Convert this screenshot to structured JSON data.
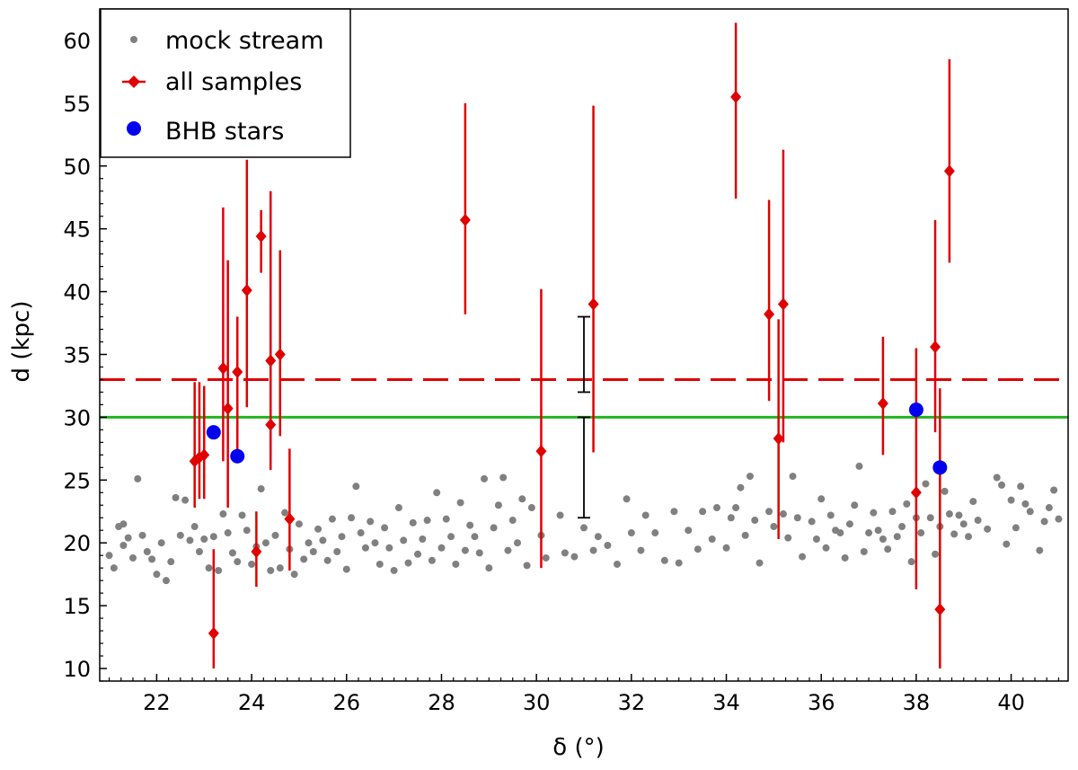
{
  "chart_data": {
    "type": "scatter",
    "xlabel": "δ (°)",
    "ylabel": "d (kpc)",
    "xlim": [
      20.8,
      41.2
    ],
    "ylim": [
      9,
      62.5
    ],
    "x_ticks": [
      22,
      24,
      26,
      28,
      30,
      32,
      34,
      36,
      38,
      40
    ],
    "y_ticks": [
      10,
      15,
      20,
      25,
      30,
      35,
      40,
      45,
      50,
      55,
      60
    ],
    "legend": {
      "placement": "top-left",
      "entries": [
        "mock stream",
        "all samples",
        "BHB stars"
      ]
    },
    "colors": {
      "mock": "#808080",
      "samples": "#e00000",
      "bhb": "#0000ee",
      "hline_dashed": "#e00000",
      "hline_solid": "#22b422",
      "ref_bars": "#000000"
    },
    "hlines": [
      {
        "style": "dashed",
        "color": "#e00000",
        "y": 33
      },
      {
        "style": "solid",
        "color": "#22b422",
        "y": 30
      }
    ],
    "reference_errorbars": [
      {
        "x": 31.0,
        "ylow": 32.0,
        "yhigh": 38.0
      },
      {
        "x": 31.0,
        "ylow": 22.0,
        "yhigh": 30.0
      }
    ],
    "series": [
      {
        "name": "mock stream",
        "marker": "dot",
        "points": [
          [
            21.0,
            19.0
          ],
          [
            21.1,
            18.0
          ],
          [
            21.2,
            21.3
          ],
          [
            21.3,
            19.8
          ],
          [
            21.3,
            21.5
          ],
          [
            21.4,
            20.4
          ],
          [
            21.5,
            18.8
          ],
          [
            21.6,
            25.1
          ],
          [
            21.7,
            20.6
          ],
          [
            21.8,
            19.3
          ],
          [
            21.9,
            18.7
          ],
          [
            22.0,
            17.5
          ],
          [
            22.1,
            20.0
          ],
          [
            22.2,
            17.0
          ],
          [
            22.3,
            18.5
          ],
          [
            22.4,
            23.6
          ],
          [
            22.5,
            20.6
          ],
          [
            22.6,
            23.4
          ],
          [
            22.7,
            20.2
          ],
          [
            22.8,
            21.3
          ],
          [
            22.9,
            19.3
          ],
          [
            23.0,
            20.3
          ],
          [
            23.1,
            18.0
          ],
          [
            23.2,
            20.5
          ],
          [
            23.3,
            17.8
          ],
          [
            23.4,
            22.3
          ],
          [
            23.5,
            20.8
          ],
          [
            23.6,
            19.2
          ],
          [
            23.7,
            18.5
          ],
          [
            23.8,
            22.2
          ],
          [
            23.9,
            21.0
          ],
          [
            24.0,
            18.3
          ],
          [
            24.1,
            19.7
          ],
          [
            24.2,
            24.3
          ],
          [
            24.3,
            20.0
          ],
          [
            24.4,
            17.8
          ],
          [
            24.5,
            20.6
          ],
          [
            24.6,
            18.0
          ],
          [
            24.7,
            22.4
          ],
          [
            24.8,
            19.5
          ],
          [
            24.9,
            17.5
          ],
          [
            25.0,
            21.5
          ],
          [
            25.1,
            18.7
          ],
          [
            25.2,
            20.0
          ],
          [
            25.3,
            19.3
          ],
          [
            25.4,
            21.1
          ],
          [
            25.5,
            20.2
          ],
          [
            25.6,
            18.6
          ],
          [
            25.7,
            21.9
          ],
          [
            25.8,
            19.3
          ],
          [
            25.9,
            20.5
          ],
          [
            26.0,
            17.9
          ],
          [
            26.1,
            22.0
          ],
          [
            26.2,
            24.5
          ],
          [
            26.3,
            20.8
          ],
          [
            26.4,
            19.6
          ],
          [
            26.5,
            21.7
          ],
          [
            26.6,
            20.0
          ],
          [
            26.7,
            18.3
          ],
          [
            26.8,
            21.2
          ],
          [
            26.9,
            19.6
          ],
          [
            27.0,
            17.8
          ],
          [
            27.1,
            22.8
          ],
          [
            27.2,
            20.2
          ],
          [
            27.3,
            18.4
          ],
          [
            27.4,
            21.6
          ],
          [
            27.5,
            19.1
          ],
          [
            27.6,
            20.3
          ],
          [
            27.7,
            21.8
          ],
          [
            27.8,
            18.6
          ],
          [
            27.9,
            24.0
          ],
          [
            28.0,
            19.6
          ],
          [
            28.1,
            21.9
          ],
          [
            28.2,
            20.5
          ],
          [
            28.3,
            18.3
          ],
          [
            28.4,
            23.2
          ],
          [
            28.5,
            19.4
          ],
          [
            28.6,
            21.4
          ],
          [
            28.7,
            20.5
          ],
          [
            28.8,
            19.2
          ],
          [
            28.9,
            25.1
          ],
          [
            29.0,
            18.0
          ],
          [
            29.1,
            21.2
          ],
          [
            29.2,
            23.0
          ],
          [
            29.3,
            25.2
          ],
          [
            29.4,
            19.4
          ],
          [
            29.5,
            21.8
          ],
          [
            29.6,
            20.0
          ],
          [
            29.7,
            23.5
          ],
          [
            29.8,
            18.2
          ],
          [
            29.9,
            22.8
          ],
          [
            30.1,
            20.6
          ],
          [
            30.2,
            18.8
          ],
          [
            30.5,
            22.2
          ],
          [
            30.6,
            19.2
          ],
          [
            30.8,
            18.9
          ],
          [
            31.0,
            21.2
          ],
          [
            31.2,
            19.4
          ],
          [
            31.3,
            20.5
          ],
          [
            31.5,
            19.8
          ],
          [
            31.7,
            18.3
          ],
          [
            31.9,
            23.5
          ],
          [
            32.0,
            20.8
          ],
          [
            32.2,
            19.4
          ],
          [
            32.3,
            22.2
          ],
          [
            32.5,
            20.8
          ],
          [
            32.7,
            18.6
          ],
          [
            32.9,
            22.5
          ],
          [
            33.0,
            18.4
          ],
          [
            33.2,
            21.0
          ],
          [
            33.4,
            19.5
          ],
          [
            33.5,
            22.5
          ],
          [
            33.7,
            20.3
          ],
          [
            33.8,
            22.8
          ],
          [
            34.0,
            19.6
          ],
          [
            34.1,
            22.0
          ],
          [
            34.2,
            22.8
          ],
          [
            34.3,
            24.4
          ],
          [
            34.4,
            20.6
          ],
          [
            34.5,
            25.3
          ],
          [
            34.6,
            21.8
          ],
          [
            34.7,
            18.4
          ],
          [
            34.9,
            22.5
          ],
          [
            35.0,
            21.3
          ],
          [
            35.2,
            22.3
          ],
          [
            35.3,
            20.4
          ],
          [
            35.4,
            25.3
          ],
          [
            35.5,
            22.0
          ],
          [
            35.6,
            18.9
          ],
          [
            35.8,
            21.7
          ],
          [
            35.9,
            20.3
          ],
          [
            36.0,
            23.5
          ],
          [
            36.1,
            19.6
          ],
          [
            36.2,
            22.2
          ],
          [
            36.3,
            21.0
          ],
          [
            36.4,
            20.8
          ],
          [
            36.5,
            18.8
          ],
          [
            36.6,
            21.5
          ],
          [
            36.7,
            23.0
          ],
          [
            36.8,
            26.1
          ],
          [
            36.9,
            19.3
          ],
          [
            37.0,
            20.8
          ],
          [
            37.1,
            22.4
          ],
          [
            37.2,
            21.0
          ],
          [
            37.3,
            20.3
          ],
          [
            37.4,
            19.5
          ],
          [
            37.5,
            22.5
          ],
          [
            37.6,
            20.5
          ],
          [
            37.7,
            21.3
          ],
          [
            37.8,
            23.1
          ],
          [
            37.9,
            18.5
          ],
          [
            38.0,
            22.0
          ],
          [
            38.1,
            20.8
          ],
          [
            38.2,
            24.7
          ],
          [
            38.3,
            22.0
          ],
          [
            38.4,
            19.1
          ],
          [
            38.5,
            21.3
          ],
          [
            38.6,
            24.1
          ],
          [
            38.7,
            22.3
          ],
          [
            38.8,
            20.7
          ],
          [
            38.9,
            22.2
          ],
          [
            39.0,
            21.5
          ],
          [
            39.1,
            20.5
          ],
          [
            39.2,
            23.3
          ],
          [
            39.3,
            21.8
          ],
          [
            39.5,
            21.1
          ],
          [
            39.7,
            25.2
          ],
          [
            39.8,
            24.6
          ],
          [
            39.9,
            19.9
          ],
          [
            40.0,
            23.4
          ],
          [
            40.1,
            21.2
          ],
          [
            40.2,
            24.5
          ],
          [
            40.3,
            23.1
          ],
          [
            40.4,
            22.5
          ],
          [
            40.6,
            19.4
          ],
          [
            40.7,
            21.7
          ],
          [
            40.8,
            22.8
          ],
          [
            40.9,
            24.2
          ],
          [
            41.0,
            21.9
          ]
        ]
      },
      {
        "name": "all samples",
        "marker": "diamond-errorbar",
        "points": [
          {
            "x": 22.8,
            "y": 26.5,
            "ylow": 22.8,
            "yhigh": 32.8
          },
          {
            "x": 22.9,
            "y": 26.8,
            "ylow": 23.5,
            "yhigh": 32.8
          },
          {
            "x": 23.0,
            "y": 27.0,
            "ylow": 23.5,
            "yhigh": 32.5
          },
          {
            "x": 23.2,
            "y": 12.8,
            "ylow": 10.0,
            "yhigh": 19.5
          },
          {
            "x": 23.4,
            "y": 33.9,
            "ylow": 26.5,
            "yhigh": 46.7
          },
          {
            "x": 23.5,
            "y": 30.7,
            "ylow": 22.8,
            "yhigh": 42.5
          },
          {
            "x": 23.7,
            "y": 33.6,
            "ylow": 27.0,
            "yhigh": 38.0
          },
          {
            "x": 23.9,
            "y": 40.1,
            "ylow": 30.8,
            "yhigh": 50.5
          },
          {
            "x": 24.1,
            "y": 19.3,
            "ylow": 16.5,
            "yhigh": 22.5
          },
          {
            "x": 24.2,
            "y": 44.4,
            "ylow": 41.5,
            "yhigh": 46.5
          },
          {
            "x": 24.4,
            "y": 34.5,
            "ylow": 27.0,
            "yhigh": 48.0
          },
          {
            "x": 24.4,
            "y": 29.4,
            "ylow": 25.8,
            "yhigh": 39.5
          },
          {
            "x": 24.6,
            "y": 35.0,
            "ylow": 28.5,
            "yhigh": 43.3
          },
          {
            "x": 24.8,
            "y": 21.9,
            "ylow": 17.8,
            "yhigh": 27.5
          },
          {
            "x": 28.5,
            "y": 45.7,
            "ylow": 38.2,
            "yhigh": 55.0
          },
          {
            "x": 30.1,
            "y": 27.3,
            "ylow": 18.0,
            "yhigh": 40.2
          },
          {
            "x": 31.2,
            "y": 39.0,
            "ylow": 27.2,
            "yhigh": 54.8
          },
          {
            "x": 34.2,
            "y": 55.5,
            "ylow": 47.4,
            "yhigh": 61.4
          },
          {
            "x": 34.9,
            "y": 38.2,
            "ylow": 31.3,
            "yhigh": 47.3
          },
          {
            "x": 35.1,
            "y": 28.3,
            "ylow": 20.3,
            "yhigh": 37.8
          },
          {
            "x": 35.2,
            "y": 39.0,
            "ylow": 28.0,
            "yhigh": 51.3
          },
          {
            "x": 37.3,
            "y": 31.1,
            "ylow": 27.0,
            "yhigh": 36.4
          },
          {
            "x": 38.0,
            "y": 24.0,
            "ylow": 16.3,
            "yhigh": 35.5
          },
          {
            "x": 38.4,
            "y": 35.6,
            "ylow": 28.8,
            "yhigh": 45.7
          },
          {
            "x": 38.5,
            "y": 14.7,
            "ylow": 10.0,
            "yhigh": 32.3
          },
          {
            "x": 38.7,
            "y": 49.6,
            "ylow": 42.3,
            "yhigh": 58.5
          }
        ]
      },
      {
        "name": "BHB stars",
        "marker": "circle",
        "points": [
          [
            23.2,
            28.8
          ],
          [
            23.7,
            26.9
          ],
          [
            38.0,
            30.6
          ],
          [
            38.5,
            26.0
          ]
        ]
      }
    ]
  }
}
